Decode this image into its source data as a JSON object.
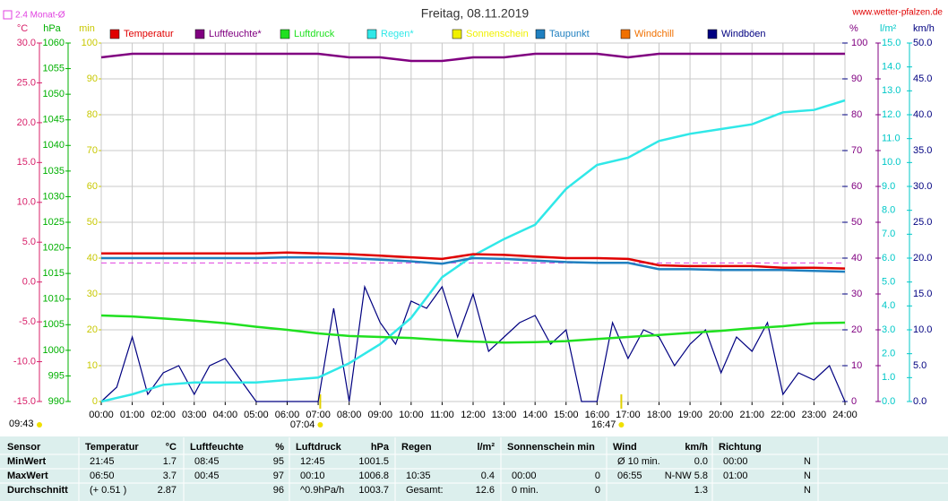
{
  "chart_data": {
    "type": "line",
    "title": "Freitag, 08.11.2019",
    "site": "www.wetter-pfalzen.de",
    "update_time": "09:43",
    "grid": true,
    "xlim": [
      0,
      24
    ],
    "xticks": [
      {
        "value": 0,
        "label": "00:00"
      },
      {
        "value": 1,
        "label": "01:00"
      },
      {
        "value": 2,
        "label": "02:00"
      },
      {
        "value": 3,
        "label": "03:00"
      },
      {
        "value": 4,
        "label": "04:00"
      },
      {
        "value": 5,
        "label": "05:00"
      },
      {
        "value": 6,
        "label": "06:00"
      },
      {
        "value": 7,
        "label": "07:00"
      },
      {
        "value": 8,
        "label": "08:00"
      },
      {
        "value": 9,
        "label": "09:00"
      },
      {
        "value": 10,
        "label": "10:00"
      },
      {
        "value": 11,
        "label": "11:00"
      },
      {
        "value": 12,
        "label": "12:00"
      },
      {
        "value": 13,
        "label": "13:00"
      },
      {
        "value": 14,
        "label": "14:00"
      },
      {
        "value": 15,
        "label": "15:00"
      },
      {
        "value": 16,
        "label": "16:00"
      },
      {
        "value": 17,
        "label": "17:00"
      },
      {
        "value": 18,
        "label": "18:00"
      },
      {
        "value": 19,
        "label": "19:00"
      },
      {
        "value": 20,
        "label": "20:00"
      },
      {
        "value": 21,
        "label": "21:00"
      },
      {
        "value": 22,
        "label": "22:00"
      },
      {
        "value": 23,
        "label": "23:00"
      },
      {
        "value": 24,
        "label": "24:00"
      }
    ],
    "sun_markers": [
      {
        "time": 7.067,
        "label": "07:04"
      },
      {
        "time": 16.783,
        "label": "16:47"
      }
    ],
    "axes": [
      {
        "id": "celsius",
        "unit": "°C",
        "color": "#d8206a",
        "lim": [
          -15,
          30
        ],
        "ticks": [
          {
            "value": -15,
            "label": "-15.0"
          },
          {
            "value": -10,
            "label": "-10.0"
          },
          {
            "value": -5,
            "label": "-5.0"
          },
          {
            "value": 0,
            "label": "0.0"
          },
          {
            "value": 5,
            "label": "5.0"
          },
          {
            "value": 10,
            "label": "10.0"
          },
          {
            "value": 15,
            "label": "15.0"
          },
          {
            "value": 20,
            "label": "20.0"
          },
          {
            "value": 25,
            "label": "25.0"
          },
          {
            "value": 30,
            "label": "30.0"
          }
        ]
      },
      {
        "id": "hpa",
        "unit": "hPa",
        "color": "#00b000",
        "lim": [
          990,
          1060
        ],
        "ticks": [
          990,
          995,
          1000,
          1005,
          1010,
          1015,
          1020,
          1025,
          1030,
          1035,
          1040,
          1045,
          1050,
          1055,
          1060
        ]
      },
      {
        "id": "min",
        "unit": "min",
        "color": "#c8c800",
        "lim": [
          0,
          100
        ],
        "ticks": [
          0,
          10,
          20,
          30,
          40,
          50,
          60,
          70,
          80,
          90,
          100
        ]
      },
      {
        "id": "percent",
        "unit": "%",
        "color": "#800080",
        "lim": [
          0,
          100
        ],
        "ticks": [
          0,
          10,
          20,
          30,
          40,
          50,
          60,
          70,
          80,
          90,
          100
        ]
      },
      {
        "id": "lm2",
        "unit": "l/m²",
        "color": "#00c8c8",
        "lim": [
          0,
          15
        ],
        "ticks": [
          {
            "value": 0,
            "label": "0.0"
          },
          {
            "value": 1,
            "label": "1.0"
          },
          {
            "value": 2,
            "label": "2.0"
          },
          {
            "value": 3,
            "label": "3.0"
          },
          {
            "value": 4,
            "label": "4.0"
          },
          {
            "value": 5,
            "label": "5.0"
          },
          {
            "value": 6,
            "label": "6.0"
          },
          {
            "value": 7,
            "label": "7.0"
          },
          {
            "value": 8,
            "label": "8.0"
          },
          {
            "value": 9,
            "label": "9.0"
          },
          {
            "value": 10,
            "label": "10.0"
          },
          {
            "value": 11,
            "label": "11.0"
          },
          {
            "value": 12,
            "label": "12.0"
          },
          {
            "value": 13,
            "label": "13.0"
          },
          {
            "value": 14,
            "label": "14.0"
          },
          {
            "value": 15,
            "label": "15.0"
          }
        ]
      },
      {
        "id": "kmh",
        "unit": "km/h",
        "color": "#000080",
        "lim": [
          0,
          50
        ],
        "ticks": [
          {
            "value": 0,
            "label": "0.0"
          },
          {
            "value": 5,
            "label": "5.0"
          },
          {
            "value": 10,
            "label": "10.0"
          },
          {
            "value": 15,
            "label": "15.0"
          },
          {
            "value": 20,
            "label": "20.0"
          },
          {
            "value": 25,
            "label": "25.0"
          },
          {
            "value": 30,
            "label": "30.0"
          },
          {
            "value": 35,
            "label": "35.0"
          },
          {
            "value": 40,
            "label": "40.0"
          },
          {
            "value": 45,
            "label": "45.0"
          },
          {
            "value": 50,
            "label": "50.0"
          }
        ]
      }
    ],
    "reference_line": {
      "label": "2.4 Monat-Ø",
      "value": 2.4,
      "axis": "celsius",
      "color": "#e040e0"
    },
    "x": [
      0,
      1,
      2,
      3,
      4,
      5,
      6,
      7,
      8,
      9,
      10,
      11,
      12,
      13,
      14,
      15,
      16,
      17,
      18,
      19,
      20,
      21,
      22,
      23,
      24
    ],
    "series": [
      {
        "name": "Temperatur",
        "color": "#e00000",
        "axis": "celsius",
        "values": [
          3.6,
          3.6,
          3.6,
          3.6,
          3.6,
          3.6,
          3.7,
          3.6,
          3.5,
          3.3,
          3.1,
          2.9,
          3.5,
          3.4,
          3.2,
          3.0,
          3.0,
          2.9,
          2.1,
          2.0,
          2.0,
          2.0,
          1.8,
          1.8,
          1.7
        ]
      },
      {
        "name": "Luftfeuchte*",
        "color": "#800080",
        "axis": "percent",
        "values": [
          96,
          97,
          97,
          97,
          97,
          97,
          97,
          97,
          96,
          96,
          95,
          95,
          96,
          96,
          97,
          97,
          97,
          96,
          97,
          97,
          97,
          97,
          97,
          97,
          97
        ]
      },
      {
        "name": "Luftdruck",
        "color": "#20e020",
        "axis": "hpa",
        "values": [
          1006.8,
          1006.6,
          1006.2,
          1005.8,
          1005.3,
          1004.6,
          1004.0,
          1003.3,
          1002.8,
          1002.6,
          1002.4,
          1002.0,
          1001.7,
          1001.5,
          1001.6,
          1001.8,
          1002.2,
          1002.6,
          1003.0,
          1003.4,
          1003.8,
          1004.3,
          1004.7,
          1005.3,
          1005.4
        ]
      },
      {
        "name": "Regen*",
        "color": "#30e8e8",
        "axis": "lm2",
        "values": [
          0,
          0.3,
          0.7,
          0.8,
          0.8,
          0.8,
          0.9,
          1.0,
          1.6,
          2.4,
          3.5,
          5.2,
          6.1,
          6.8,
          7.4,
          8.9,
          9.9,
          10.2,
          10.9,
          11.2,
          11.4,
          11.6,
          12.1,
          12.2,
          12.6
        ]
      },
      {
        "name": "Sonnenschein",
        "color": "#f0f000",
        "axis": "min"
      },
      {
        "name": "Taupunkt",
        "color": "#2080c0",
        "axis": "celsius",
        "values": [
          3.0,
          3.0,
          3.0,
          3.0,
          3.0,
          3.0,
          3.1,
          3.1,
          3.0,
          2.8,
          2.6,
          2.3,
          3.0,
          2.9,
          2.7,
          2.5,
          2.4,
          2.4,
          1.6,
          1.6,
          1.5,
          1.5,
          1.5,
          1.4,
          1.3
        ]
      },
      {
        "name": "Windchill",
        "color": "#f07000",
        "axis": "celsius"
      },
      {
        "name": "Windböen",
        "color": "#000080",
        "axis": "kmh",
        "x": [
          0,
          0.5,
          1,
          1.5,
          2,
          2.5,
          3,
          3.5,
          4,
          4.5,
          5,
          5.5,
          6,
          6.5,
          7,
          7.5,
          8,
          8.5,
          9,
          9.5,
          10,
          10.5,
          11,
          11.5,
          12,
          12.5,
          13,
          13.5,
          14,
          14.5,
          15,
          15.5,
          16,
          16.5,
          17,
          17.5,
          18,
          18.5,
          19,
          19.5,
          20,
          20.5,
          21,
          21.5,
          22,
          22.5,
          23,
          23.5,
          24
        ],
        "values": [
          0,
          2,
          9,
          1,
          4,
          5,
          1,
          5,
          6,
          3,
          0,
          0,
          0,
          0,
          0,
          13,
          0,
          16,
          11,
          8,
          14,
          13,
          16,
          9,
          15,
          7,
          9,
          11,
          12,
          8,
          10,
          0,
          0,
          11,
          6,
          10,
          9,
          5,
          8,
          10,
          4,
          9,
          7,
          11,
          1,
          4,
          3,
          5,
          0
        ]
      }
    ]
  },
  "table": {
    "columns": [
      {
        "name": "Sensor"
      },
      {
        "name": "Temperatur",
        "unit": "°C"
      },
      {
        "name": "Luftfeuchte",
        "unit": "%"
      },
      {
        "name": "Luftdruck",
        "unit": "hPa"
      },
      {
        "name": "Regen",
        "unit": "l/m²"
      },
      {
        "name": "Sonnenschein min"
      },
      {
        "name": "Wind",
        "unit": "km/h"
      },
      {
        "name": "Richtung"
      }
    ],
    "rows": [
      {
        "label": "MinWert",
        "cells": [
          {
            "left": "21:45",
            "right": "1.7"
          },
          {
            "left": "08:45",
            "right": "95"
          },
          {
            "left": "12:45",
            "right": "1001.5"
          },
          {},
          {},
          {
            "left": "Ø 10 min.",
            "right": "0.0"
          },
          {
            "left": "00:00",
            "right": "N"
          }
        ]
      },
      {
        "label": "MaxWert",
        "cells": [
          {
            "left": "06:50",
            "right": "3.7"
          },
          {
            "left": "00:45",
            "right": "97"
          },
          {
            "left": "00:10",
            "right": "1006.8"
          },
          {
            "left": "10:35",
            "right": "0.4"
          },
          {
            "left": "00:00",
            "right": "0"
          },
          {
            "left": "06:55",
            "right": "N-NW 5.8"
          },
          {
            "left": "01:00",
            "right": "N"
          }
        ]
      },
      {
        "label": "Durchschnitt",
        "cells": [
          {
            "left": "(+ 0.51 )",
            "right": "2.87"
          },
          {
            "right": "96"
          },
          {
            "left": "^0.9hPa/h",
            "right": "1003.7"
          },
          {
            "left": "Gesamt:",
            "right": "12.6"
          },
          {
            "left": "0 min.",
            "right": "0"
          },
          {
            "right": "1.3"
          },
          {
            "right": "N"
          }
        ]
      }
    ]
  }
}
